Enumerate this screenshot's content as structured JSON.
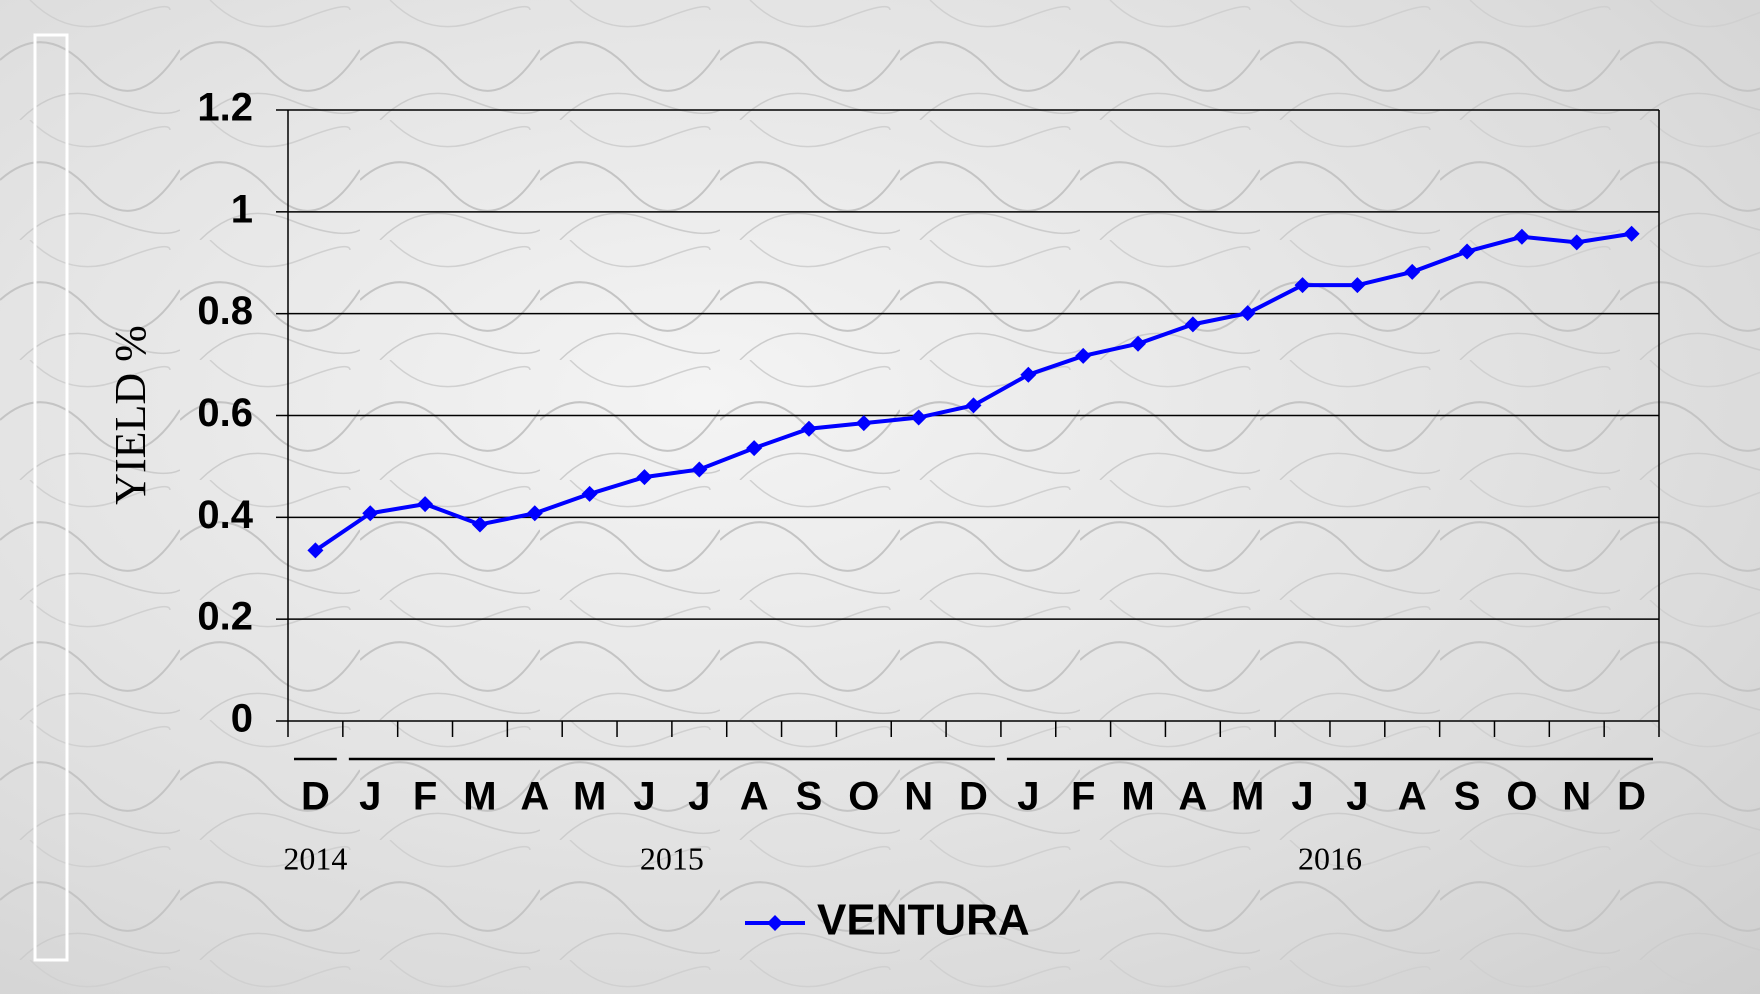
{
  "chart_data": {
    "type": "line",
    "y_label": "YIELD %",
    "categories": [
      "D",
      "J",
      "F",
      "M",
      "A",
      "M",
      "J",
      "J",
      "A",
      "S",
      "O",
      "N",
      "D",
      "J",
      "F",
      "M",
      "A",
      "M",
      "J",
      "J",
      "A",
      "S",
      "O",
      "N",
      "D"
    ],
    "x_groups": [
      {
        "label": "2014",
        "count": 1
      },
      {
        "label": "2015",
        "count": 12
      },
      {
        "label": "2016",
        "count": 12
      }
    ],
    "series": [
      {
        "name": "VENTURA",
        "color": "#0000ff",
        "values": [
          0.335,
          0.408,
          0.426,
          0.386,
          0.408,
          0.446,
          0.479,
          0.494,
          0.536,
          0.574,
          0.585,
          0.596,
          0.62,
          0.68,
          0.717,
          0.741,
          0.779,
          0.801,
          0.856,
          0.856,
          0.882,
          0.922,
          0.951,
          0.94,
          0.957
        ]
      }
    ],
    "ylim": [
      0,
      1.2
    ],
    "yticks": [
      0,
      0.2,
      0.4,
      0.6,
      0.8,
      1,
      1.2
    ],
    "grid": true,
    "legend": "bottom"
  }
}
